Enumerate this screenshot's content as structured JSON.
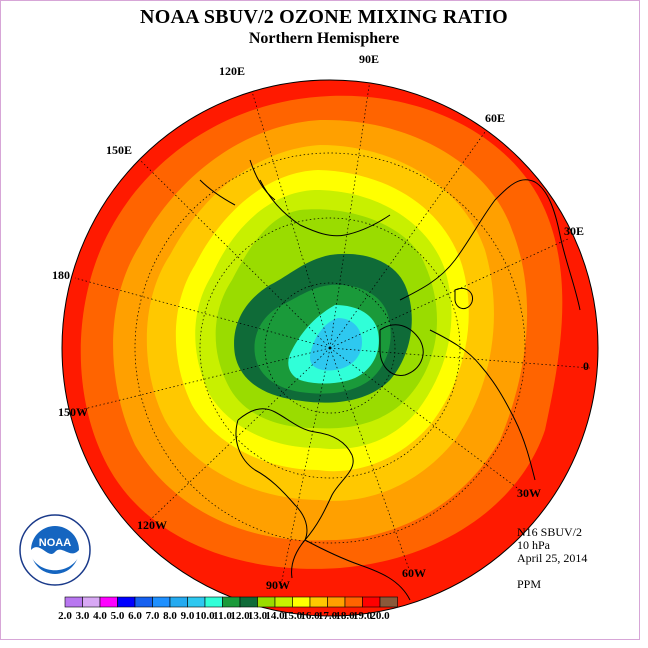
{
  "title": "NOAA SBUV/2 OZONE MIXING RATIO",
  "subtitle": "Northern Hemisphere",
  "longitude_labels": {
    "e120": "120E",
    "e90": "90E",
    "e60": "60E",
    "e150": "150E",
    "e30": "30E",
    "lon180": "180",
    "lon0": "0",
    "w150": "150W",
    "w30": "30W",
    "w120": "120W",
    "w90": "90W",
    "w60": "60W"
  },
  "info": {
    "instrument": "N16 SBUV/2",
    "level": "10 hPa",
    "date": "April 25, 2014",
    "units": "PPM"
  },
  "logo": {
    "text": "NOAA"
  },
  "colorbar": {
    "labels": [
      "2.0",
      "3.0",
      "4.0",
      "5.0",
      "6.0",
      "7.0",
      "8.0",
      "9.0",
      "10.0",
      "11.0",
      "12.0",
      "13.0",
      "14.0",
      "15.0",
      "16.0",
      "17.0",
      "18.0",
      "19.0",
      "20.0"
    ],
    "colors": [
      "#b877f0",
      "#d8a8f4",
      "#ff00ff",
      "#0000ff",
      "#1560f0",
      "#1e90ff",
      "#24aaf0",
      "#2ec8f0",
      "#30ffd8",
      "#1a9a3a",
      "#0f6b38",
      "#9adc00",
      "#c8f000",
      "#ffff00",
      "#ffc800",
      "#ffa000",
      "#ff6400",
      "#ff0000",
      "#8a5a3a"
    ]
  },
  "map": {
    "band_colors": [
      "#ff1a00",
      "#ff6400",
      "#ffa000",
      "#ffc800",
      "#ffff00",
      "#c8f000",
      "#9adc00",
      "#0f6b38",
      "#1a9a3a",
      "#30ffd8",
      "#2ec8f0"
    ],
    "band_values_ppm": [
      19.0,
      18.0,
      17.0,
      16.0,
      15.0,
      14.0,
      13.0,
      12.0,
      11.0,
      10.0,
      9.0
    ]
  }
}
